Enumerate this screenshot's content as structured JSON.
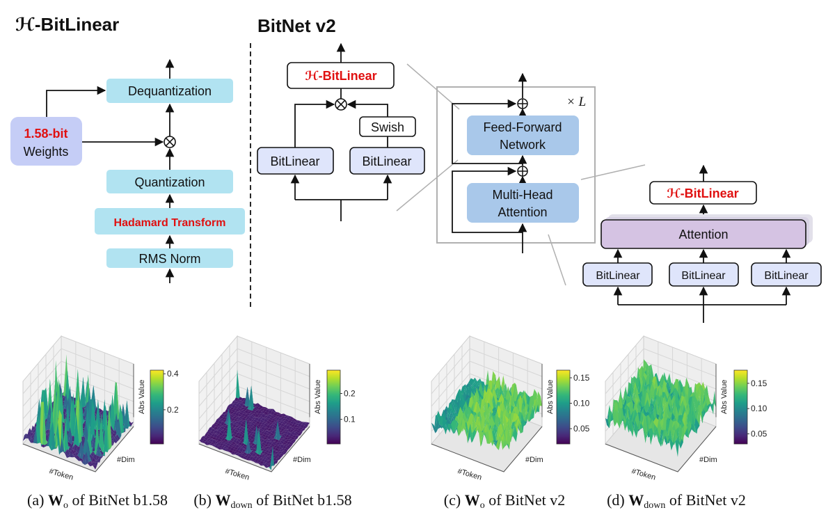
{
  "left_panel": {
    "title": "ℋ-BitLinear",
    "dequantization": "Dequantization",
    "weights_bits": "1.58-bit",
    "weights_label": "Weights",
    "quantization": "Quantization",
    "hadamard": "Hadamard Transform",
    "rms_norm": "RMS Norm"
  },
  "bitnet_v2": {
    "title": "BitNet v2",
    "h_bitlinear": "ℋ-BitLinear",
    "swish": "Swish",
    "bitlinear_left": "BitLinear",
    "bitlinear_right": "BitLinear",
    "ffn_line1": "Feed-Forward",
    "ffn_line2": "Network",
    "mha_line1": "Multi-Head",
    "mha_line2": "Attention",
    "repeat": "× L",
    "attn_h_bitlinear": "ℋ-BitLinear",
    "attention": "Attention",
    "attn_bitlinears": [
      "BitLinear",
      "BitLinear",
      "BitLinear"
    ]
  },
  "colors": {
    "cyan_box": "#b1e3f1",
    "weights_box": "#c5cdf6",
    "bitlinear_box": "#dfe5fb",
    "block_box": "#a9c8ea",
    "attention_box": "#d5c3e3",
    "accent_red": "#e01010",
    "connector_gray": "#b0b0b0"
  },
  "plots": [
    {
      "caption": {
        "label": "(a)",
        "matrix": "W",
        "sub": "o",
        "rest": "of BitNet b1.58"
      },
      "xlabel": "#Token",
      "ylabel": "#Dim",
      "zlabel": "Abs Value",
      "colormap": "viridis",
      "colorbar": {
        "range": [
          0.01,
          0.42
        ],
        "ticks": [
          0.2,
          0.4
        ],
        "tick_labels": [
          "0.2",
          "0.4"
        ]
      },
      "pattern": "sparse large spikes"
    },
    {
      "caption": {
        "label": "(b)",
        "matrix": "W",
        "sub": "down",
        "rest": "of BitNet b1.58"
      },
      "xlabel": "#Token",
      "ylabel": "#Dim",
      "zlabel": "Abs Value",
      "colormap": "viridis",
      "colorbar": {
        "range": [
          0.005,
          0.29
        ],
        "ticks": [
          0.1,
          0.2
        ],
        "tick_labels": [
          "0.1",
          "0.2"
        ]
      },
      "pattern": "near-flat with rare spikes"
    },
    {
      "caption": {
        "label": "(c)",
        "matrix": "W",
        "sub": "o",
        "rest": "of BitNet v2"
      },
      "xlabel": "#Token",
      "ylabel": "#Dim",
      "zlabel": "Abs Value",
      "colormap": "viridis",
      "colorbar": {
        "range": [
          0.02,
          0.165
        ],
        "ticks": [
          0.05,
          0.1,
          0.15
        ],
        "tick_labels": [
          "0.05",
          "0.10",
          "0.15"
        ]
      },
      "pattern": "dense uniform"
    },
    {
      "caption": {
        "label": "(d)",
        "matrix": "W",
        "sub": "down",
        "rest": "of BitNet v2"
      },
      "xlabel": "#Token",
      "ylabel": "#Dim",
      "zlabel": "Abs Value",
      "colormap": "viridis",
      "colorbar": {
        "range": [
          0.03,
          0.176
        ],
        "ticks": [
          0.05,
          0.1,
          0.15
        ],
        "tick_labels": [
          "0.05",
          "0.10",
          "0.15"
        ]
      },
      "pattern": "dense uniform"
    }
  ]
}
